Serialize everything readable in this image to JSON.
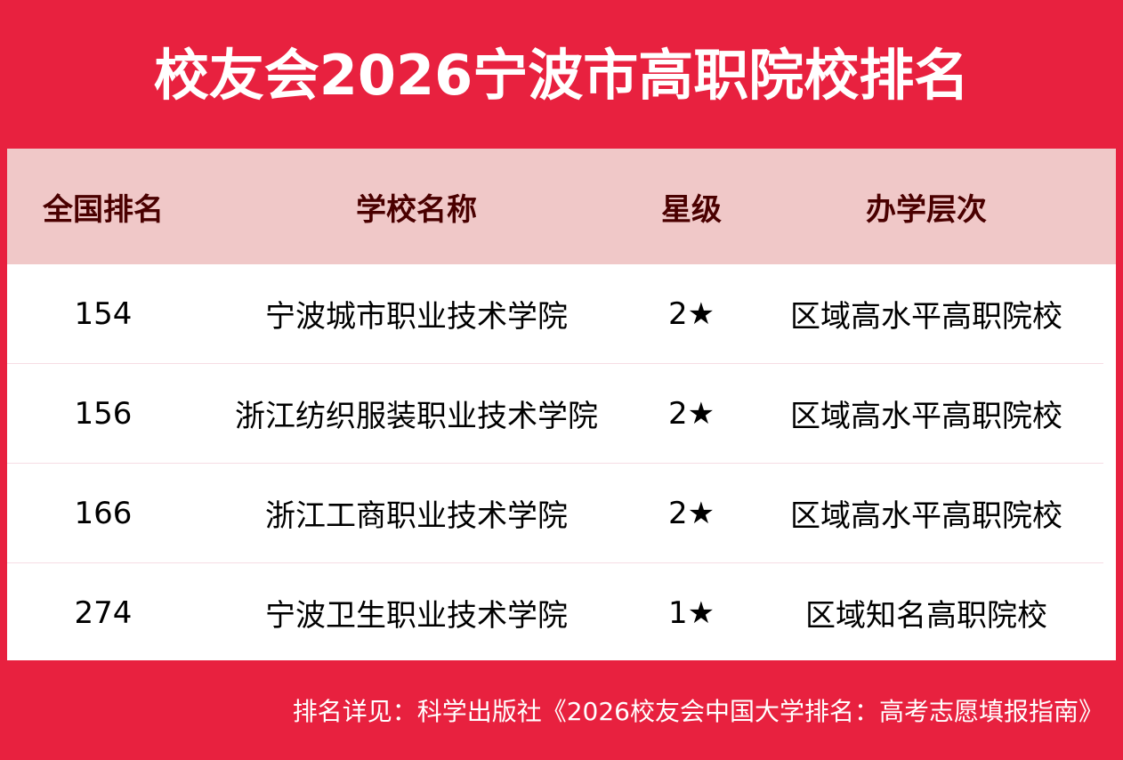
{
  "title": "校友会2026宁波市高职院校排名",
  "headers": [
    "全国排名",
    "学校名称",
    "星级",
    "办学层次"
  ],
  "rows": [
    {
      "rank": "154",
      "name": "宁波城市职业技术学院",
      "stars": "2★",
      "level": "区域高水平高职院校"
    },
    {
      "rank": "156",
      "name": "浙江纺织服装职业技术学院",
      "stars": "2★",
      "level": "区域高水平高职院校"
    },
    {
      "rank": "166",
      "name": "浙江工商职业技术学院",
      "stars": "2★",
      "level": "区域高水平高职院校"
    },
    {
      "rank": "274",
      "name": "宁波卫生职业技术学院",
      "stars": "1★",
      "level": "区域知名高职院校"
    }
  ],
  "footer": "排名详见：科学出版社《2026校友会中国大学排名：高考志愿填报指南》",
  "colors": {
    "background": "#e8213f",
    "header_bg": "#f0c8c8",
    "header_text": "#4a0000"
  }
}
